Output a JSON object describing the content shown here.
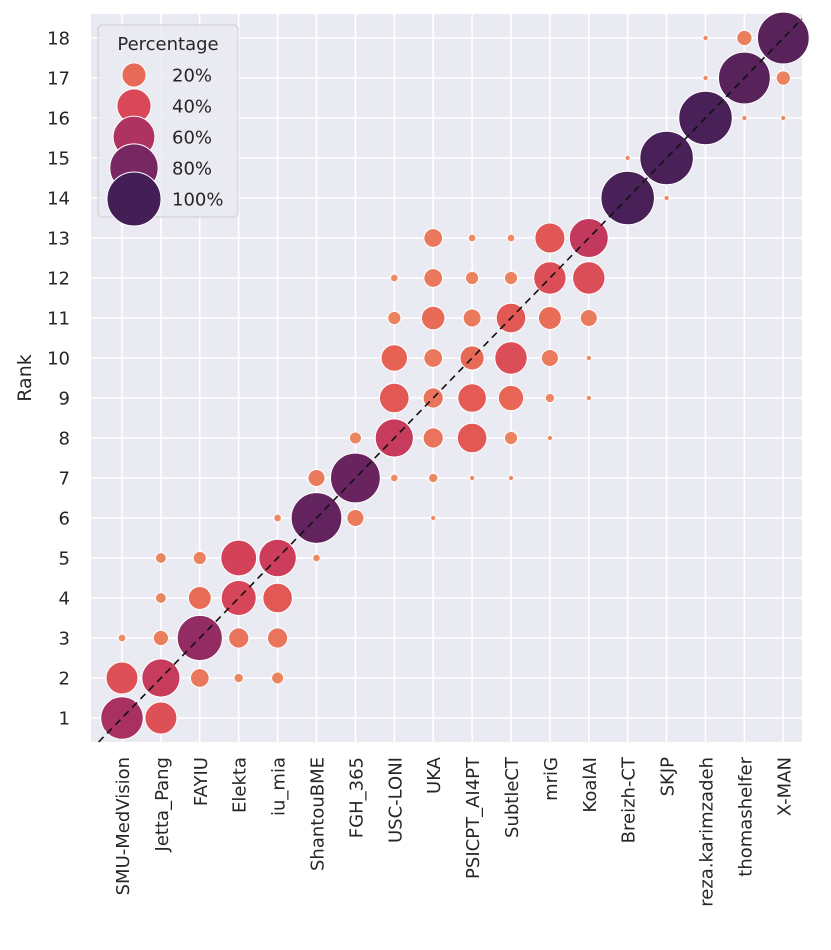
{
  "chart_data": {
    "type": "scatter",
    "title": "",
    "xlabel": "",
    "ylabel": "Rank",
    "categories": [
      "SMU-MedVision",
      "Jetta_Pang",
      "FAYIU",
      "Elekta",
      "iu_mia",
      "ShantouBME",
      "FGH_365",
      "USC-LONI",
      "UKA",
      "PSICPT_AI4PT",
      "SubtleCT",
      "mriG",
      "KoalAI",
      "Breizh-CT",
      "SKJP",
      "reza.karimzadeh",
      "thomashelfer",
      "X-MAN"
    ],
    "y_ticks": [
      1,
      2,
      3,
      4,
      5,
      6,
      7,
      8,
      9,
      10,
      11,
      12,
      13,
      14,
      15,
      16,
      17,
      18
    ],
    "ylim": [
      0.4,
      18.6
    ],
    "grid": true,
    "diagonal_line": "dashed y = x",
    "legend": {
      "title": "Percentage",
      "placement": "top-left",
      "entries": [
        {
          "label": "20%",
          "value": 20
        },
        {
          "label": "40%",
          "value": 40
        },
        {
          "label": "60%",
          "value": 60
        },
        {
          "label": "80%",
          "value": 80
        },
        {
          "label": "100%",
          "value": 100
        }
      ]
    },
    "colormap": "flare",
    "points": [
      {
        "team": "SMU-MedVision",
        "rank": 1,
        "pct": 62
      },
      {
        "team": "SMU-MedVision",
        "rank": 2,
        "pct": 35
      },
      {
        "team": "SMU-MedVision",
        "rank": 3,
        "pct": 2
      },
      {
        "team": "Jetta_Pang",
        "rank": 1,
        "pct": 35
      },
      {
        "team": "Jetta_Pang",
        "rank": 2,
        "pct": 50
      },
      {
        "team": "Jetta_Pang",
        "rank": 3,
        "pct": 8
      },
      {
        "team": "Jetta_Pang",
        "rank": 4,
        "pct": 4
      },
      {
        "team": "Jetta_Pang",
        "rank": 5,
        "pct": 4
      },
      {
        "team": "FAYIU",
        "rank": 2,
        "pct": 12
      },
      {
        "team": "FAYIU",
        "rank": 3,
        "pct": 70
      },
      {
        "team": "FAYIU",
        "rank": 4,
        "pct": 18
      },
      {
        "team": "FAYIU",
        "rank": 5,
        "pct": 6
      },
      {
        "team": "Elekta",
        "rank": 2,
        "pct": 3
      },
      {
        "team": "Elekta",
        "rank": 3,
        "pct": 14
      },
      {
        "team": "Elekta",
        "rank": 4,
        "pct": 42
      },
      {
        "team": "Elekta",
        "rank": 5,
        "pct": 44
      },
      {
        "team": "iu_mia",
        "rank": 2,
        "pct": 5
      },
      {
        "team": "iu_mia",
        "rank": 3,
        "pct": 14
      },
      {
        "team": "iu_mia",
        "rank": 4,
        "pct": 30
      },
      {
        "team": "iu_mia",
        "rank": 5,
        "pct": 48
      },
      {
        "team": "iu_mia",
        "rank": 6,
        "pct": 2
      },
      {
        "team": "ShantouBME",
        "rank": 5,
        "pct": 2
      },
      {
        "team": "ShantouBME",
        "rank": 6,
        "pct": 88
      },
      {
        "team": "ShantouBME",
        "rank": 7,
        "pct": 10
      },
      {
        "team": "FGH_365",
        "rank": 6,
        "pct": 10
      },
      {
        "team": "FGH_365",
        "rank": 7,
        "pct": 85
      },
      {
        "team": "FGH_365",
        "rank": 8,
        "pct": 5
      },
      {
        "team": "USC-LONI",
        "rank": 7,
        "pct": 2
      },
      {
        "team": "USC-LONI",
        "rank": 8,
        "pct": 50
      },
      {
        "team": "USC-LONI",
        "rank": 9,
        "pct": 30
      },
      {
        "team": "USC-LONI",
        "rank": 10,
        "pct": 24
      },
      {
        "team": "USC-LONI",
        "rank": 11,
        "pct": 6
      },
      {
        "team": "USC-LONI",
        "rank": 12,
        "pct": 2
      },
      {
        "team": "UKA",
        "rank": 6,
        "pct": 1
      },
      {
        "team": "UKA",
        "rank": 7,
        "pct": 3
      },
      {
        "team": "UKA",
        "rank": 8,
        "pct": 14
      },
      {
        "team": "UKA",
        "rank": 9,
        "pct": 14
      },
      {
        "team": "UKA",
        "rank": 10,
        "pct": 12
      },
      {
        "team": "UKA",
        "rank": 11,
        "pct": 19
      },
      {
        "team": "UKA",
        "rank": 12,
        "pct": 12
      },
      {
        "team": "UKA",
        "rank": 13,
        "pct": 12
      },
      {
        "team": "PSICPT_AI4PT",
        "rank": 7,
        "pct": 1
      },
      {
        "team": "PSICPT_AI4PT",
        "rank": 8,
        "pct": 30
      },
      {
        "team": "PSICPT_AI4PT",
        "rank": 9,
        "pct": 28
      },
      {
        "team": "PSICPT_AI4PT",
        "rank": 10,
        "pct": 20
      },
      {
        "team": "PSICPT_AI4PT",
        "rank": 11,
        "pct": 11
      },
      {
        "team": "PSICPT_AI4PT",
        "rank": 12,
        "pct": 6
      },
      {
        "team": "PSICPT_AI4PT",
        "rank": 13,
        "pct": 2
      },
      {
        "team": "SubtleCT",
        "rank": 7,
        "pct": 1
      },
      {
        "team": "SubtleCT",
        "rank": 8,
        "pct": 6
      },
      {
        "team": "SubtleCT",
        "rank": 9,
        "pct": 22
      },
      {
        "team": "SubtleCT",
        "rank": 10,
        "pct": 36
      },
      {
        "team": "SubtleCT",
        "rank": 11,
        "pct": 30
      },
      {
        "team": "SubtleCT",
        "rank": 12,
        "pct": 6
      },
      {
        "team": "SubtleCT",
        "rank": 13,
        "pct": 2
      },
      {
        "team": "mriG",
        "rank": 8,
        "pct": 1
      },
      {
        "team": "mriG",
        "rank": 9,
        "pct": 3
      },
      {
        "team": "mriG",
        "rank": 10,
        "pct": 10
      },
      {
        "team": "mriG",
        "rank": 11,
        "pct": 18
      },
      {
        "team": "mriG",
        "rank": 12,
        "pct": 36
      },
      {
        "team": "mriG",
        "rank": 13,
        "pct": 31
      },
      {
        "team": "KoalAI",
        "rank": 9,
        "pct": 1
      },
      {
        "team": "KoalAI",
        "rank": 10,
        "pct": 1
      },
      {
        "team": "KoalAI",
        "rank": 11,
        "pct": 10
      },
      {
        "team": "KoalAI",
        "rank": 12,
        "pct": 36
      },
      {
        "team": "KoalAI",
        "rank": 13,
        "pct": 52
      },
      {
        "team": "Breizh-CT",
        "rank": 14,
        "pct": 98
      },
      {
        "team": "Breizh-CT",
        "rank": 15,
        "pct": 1
      },
      {
        "team": "SKJP",
        "rank": 14,
        "pct": 1
      },
      {
        "team": "SKJP",
        "rank": 15,
        "pct": 98
      },
      {
        "team": "reza.karimzadeh",
        "rank": 16,
        "pct": 98
      },
      {
        "team": "reza.karimzadeh",
        "rank": 17,
        "pct": 1
      },
      {
        "team": "reza.karimzadeh",
        "rank": 18,
        "pct": 1
      },
      {
        "team": "thomashelfer",
        "rank": 16,
        "pct": 1
      },
      {
        "team": "thomashelfer",
        "rank": 17,
        "pct": 92
      },
      {
        "team": "thomashelfer",
        "rank": 18,
        "pct": 8
      },
      {
        "team": "X-MAN",
        "rank": 16,
        "pct": 1
      },
      {
        "team": "X-MAN",
        "rank": 17,
        "pct": 7
      },
      {
        "team": "X-MAN",
        "rank": 18,
        "pct": 92
      }
    ]
  }
}
